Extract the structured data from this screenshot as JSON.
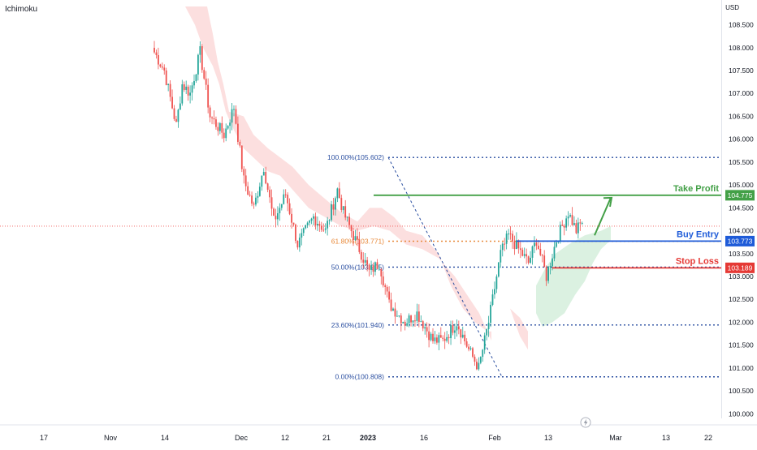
{
  "indicator_label": "Ichimoku",
  "currency": "USD",
  "colors": {
    "up": "#26a69a",
    "down": "#ef5350",
    "fib": "#2a4ea0",
    "fib618": "#e8893a",
    "take_profit": "#43a047",
    "buy_entry": "#1e5bd8",
    "stop_loss": "#e53935",
    "cloud_bear": "#fcdcdc",
    "cloud_bull": "#d9f0df",
    "last_price": "#ef5350"
  },
  "chart_data": {
    "type": "candlestick",
    "ylim": [
      99.9,
      108.9
    ],
    "y_ticks": [
      "100.000",
      "100.500",
      "101.000",
      "101.500",
      "102.000",
      "102.500",
      "103.000",
      "103.500",
      "104.000",
      "104.500",
      "105.000",
      "105.500",
      "106.000",
      "106.500",
      "107.000",
      "107.500",
      "108.000",
      "108.500"
    ],
    "x_ticks": [
      "17",
      "Nov",
      "14",
      "Dec",
      "12",
      "21",
      "2023",
      "16",
      "Feb",
      "13",
      "Mar",
      "13",
      "22"
    ],
    "fib_levels": [
      {
        "label": "100.00%(105.602)",
        "value": 105.602
      },
      {
        "label": "61.80%(103.771)",
        "value": 103.771
      },
      {
        "label": "50.00%(103.205)",
        "value": 103.205
      },
      {
        "label": "23.60%(101.940)",
        "value": 101.94
      },
      {
        "label": "0.00%(100.808)",
        "value": 100.808
      }
    ],
    "levels": [
      {
        "name": "Take Profit",
        "value": 104.775,
        "price_label": "104.775",
        "key": "take_profit"
      },
      {
        "name": "Buy Entry",
        "value": 103.773,
        "price_label": "103.773",
        "key": "buy_entry"
      },
      {
        "name": "Stop Loss",
        "value": 103.189,
        "price_label": "103.189",
        "key": "stop_loss"
      }
    ],
    "last_price": 104.1,
    "path": [
      [
        107.9,
        0
      ],
      [
        107.5,
        5
      ],
      [
        106.3,
        11
      ],
      [
        107.2,
        14
      ],
      [
        107.0,
        18
      ],
      [
        107.9,
        23
      ],
      [
        106.5,
        28
      ],
      [
        106.1,
        35
      ],
      [
        106.7,
        40
      ],
      [
        105.1,
        45
      ],
      [
        104.5,
        50
      ],
      [
        105.4,
        55
      ],
      [
        104.2,
        60
      ],
      [
        104.8,
        66
      ],
      [
        103.7,
        72
      ],
      [
        104.3,
        80
      ],
      [
        104.0,
        86
      ],
      [
        104.9,
        92
      ],
      [
        104.4,
        95
      ],
      [
        103.9,
        100
      ],
      [
        103.6,
        103
      ],
      [
        103.1,
        108
      ],
      [
        103.3,
        113
      ],
      [
        102.4,
        118
      ],
      [
        102.0,
        126
      ],
      [
        102.2,
        132
      ],
      [
        101.6,
        140
      ],
      [
        101.6,
        145
      ],
      [
        102.0,
        152
      ],
      [
        101.4,
        158
      ],
      [
        101.0,
        163
      ],
      [
        102.0,
        168
      ],
      [
        103.5,
        174
      ],
      [
        103.9,
        178
      ],
      [
        103.6,
        183
      ],
      [
        103.3,
        188
      ],
      [
        103.8,
        192
      ],
      [
        103.0,
        197
      ],
      [
        103.8,
        202
      ],
      [
        104.4,
        208
      ],
      [
        104.0,
        212
      ],
      [
        104.2,
        215
      ]
    ]
  }
}
